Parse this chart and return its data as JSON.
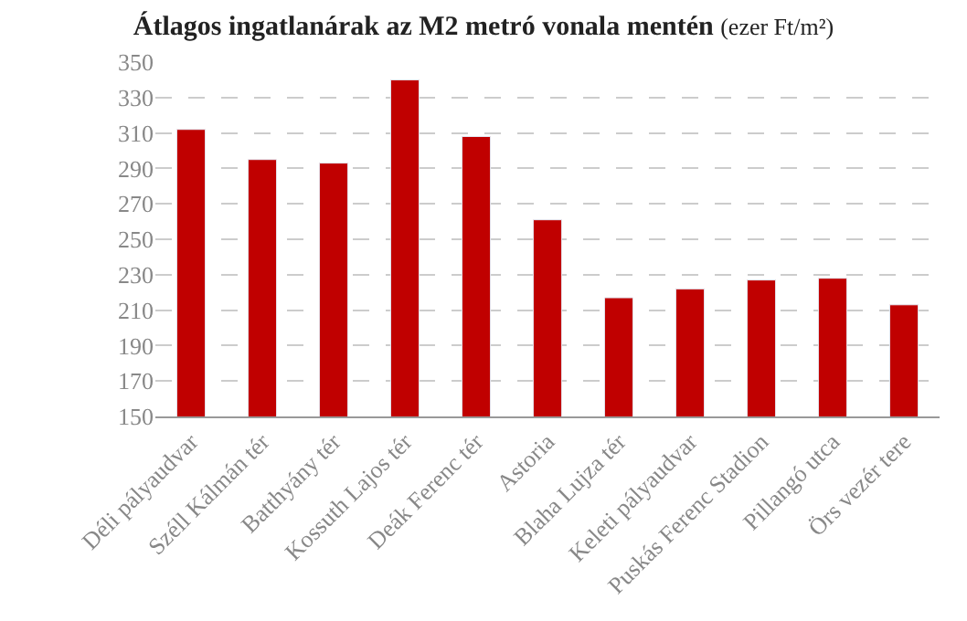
{
  "chart_data": {
    "type": "bar",
    "title": "Átlagos ingatlanárak az M2 metró vonala mentén",
    "subtitle": "(ezer Ft/m²)",
    "categories": [
      "Déli pályaudvar",
      "Széll Kálmán tér",
      "Batthyány tér",
      "Kossuth Lajos tér",
      "Deák Ferenc tér",
      "Astoria",
      "Blaha Lujza tér",
      "Keleti pályaudvar",
      "Puskás Ferenc Stadion",
      "Pillangó utca",
      "Örs vezér tere"
    ],
    "values": [
      312,
      295,
      293,
      340,
      308,
      261,
      217,
      222,
      227,
      228,
      213
    ],
    "color": "#c00000",
    "ylim": [
      150,
      350
    ],
    "yticks": [
      150,
      170,
      190,
      210,
      230,
      250,
      270,
      290,
      310,
      330,
      350
    ],
    "grid": "y",
    "legend": false
  }
}
